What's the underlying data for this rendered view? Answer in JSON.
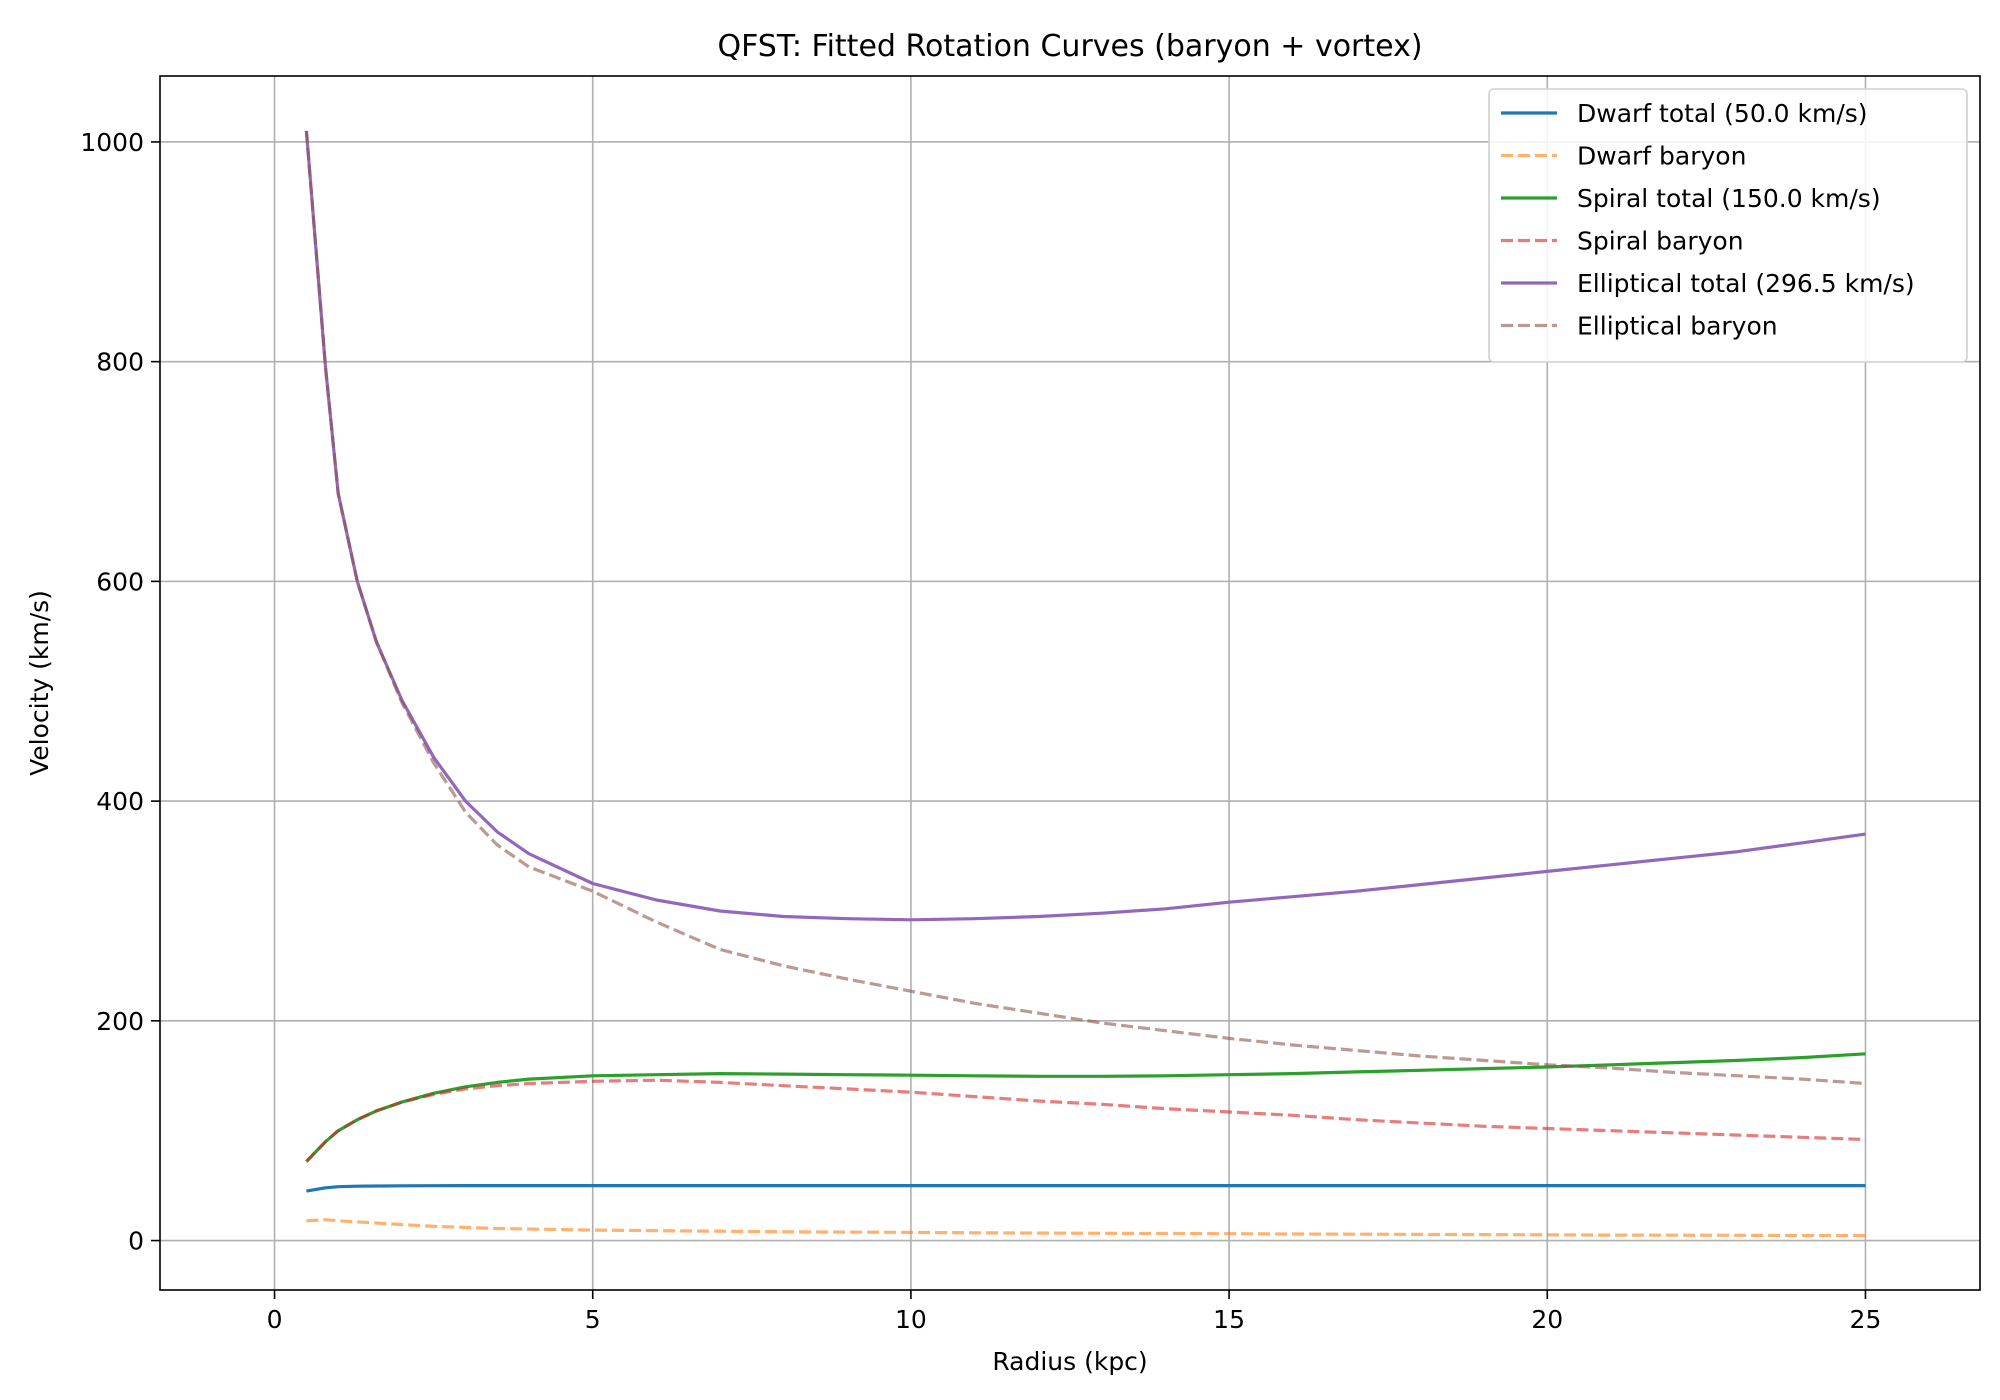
{
  "chart_data": {
    "type": "line",
    "title": "QFST: Fitted Rotation Curves (baryon + vortex)",
    "xlabel": "Radius (kpc)",
    "ylabel": "Velocity (km/s)",
    "xlim": [
      -1.8,
      26.8
    ],
    "ylim": [
      -45,
      1060
    ],
    "xticks": [
      0,
      5,
      10,
      15,
      20,
      25
    ],
    "yticks": [
      0,
      200,
      400,
      600,
      800,
      1000
    ],
    "grid": true,
    "legend_position": "top-right",
    "x": [
      0.5,
      0.8,
      1,
      1.3,
      1.6,
      2,
      2.5,
      3,
      3.5,
      4,
      5,
      6,
      7,
      8,
      9,
      10,
      11,
      12,
      13,
      14,
      15,
      16,
      17,
      18,
      19,
      20,
      21,
      22,
      23,
      24,
      25
    ],
    "series": [
      {
        "name": "Dwarf total (50.0 km/s)",
        "color": "#1f77b4",
        "dash": "solid",
        "values": [
          45,
          48,
          49,
          49.5,
          49.7,
          49.8,
          49.9,
          50,
          50,
          50,
          50,
          50,
          50,
          50,
          50,
          50,
          50,
          50,
          50,
          50,
          50,
          50,
          50,
          50,
          50,
          50,
          50,
          50,
          50,
          50,
          50
        ]
      },
      {
        "name": "Dwarf baryon",
        "color": "#ff7f0e",
        "dash": "dashed",
        "values": [
          18,
          19,
          18,
          17,
          16,
          14.5,
          13,
          12,
          11,
          10.5,
          9.5,
          9,
          8.5,
          8,
          7.7,
          7.4,
          7.1,
          6.8,
          6.6,
          6.4,
          6.2,
          6,
          5.8,
          5.6,
          5.4,
          5.2,
          5,
          4.9,
          4.8,
          4.6,
          4.5
        ]
      },
      {
        "name": "Spiral total (150.0 km/s)",
        "color": "#2ca02c",
        "dash": "solid",
        "values": [
          72,
          90,
          100,
          110,
          118,
          126,
          134,
          140,
          144,
          147,
          150,
          151,
          152,
          151.5,
          151,
          150.5,
          150,
          149.5,
          149.5,
          150,
          151,
          152,
          153.5,
          155,
          156.5,
          158,
          160,
          162,
          164,
          166.5,
          170
        ]
      },
      {
        "name": "Spiral baryon",
        "color": "#d62728",
        "dash": "dashed",
        "values": [
          72,
          90,
          100,
          110,
          118,
          126,
          133,
          138,
          141,
          143,
          145,
          146,
          144,
          141,
          138,
          135,
          131,
          127,
          124,
          120,
          117,
          114,
          110,
          107,
          104,
          102,
          100,
          98,
          96,
          94,
          92
        ]
      },
      {
        "name": "Elliptical total (296.5 km/s)",
        "color": "#9467bd",
        "dash": "solid",
        "values": [
          1010,
          795,
          680,
          600,
          545,
          492,
          440,
          400,
          372,
          352,
          325,
          310,
          300,
          295,
          293,
          292,
          293,
          295,
          298,
          302,
          308,
          313,
          318,
          324,
          330,
          336,
          342,
          348,
          354,
          362,
          370
        ]
      },
      {
        "name": "Elliptical baryon",
        "color": "#8c564b",
        "dash": "dashed",
        "values": [
          1010,
          795,
          680,
          600,
          545,
          490,
          435,
          390,
          360,
          340,
          318,
          290,
          265,
          250,
          238,
          227,
          216,
          207,
          198,
          191,
          184,
          178,
          173,
          168,
          164,
          160,
          157,
          153,
          150,
          147,
          143
        ]
      }
    ]
  }
}
